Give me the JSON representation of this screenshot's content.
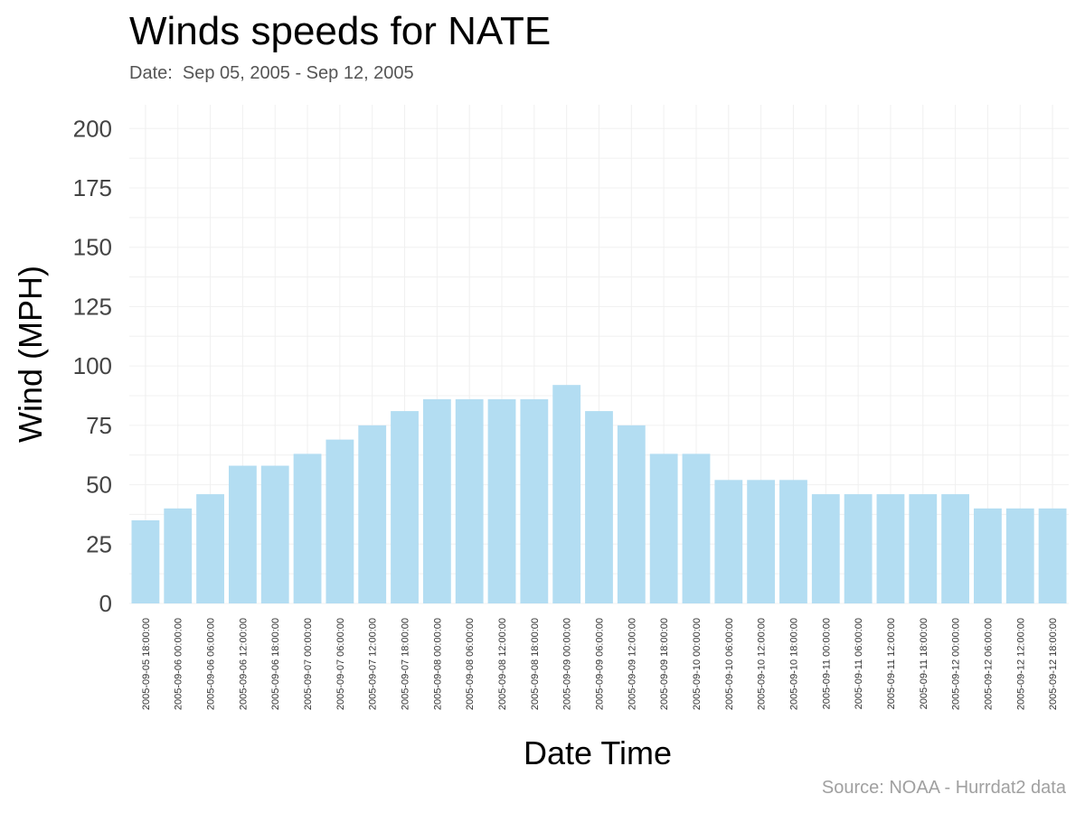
{
  "chart_data": {
    "type": "bar",
    "title": "Winds speeds for NATE",
    "subtitle": "Date:  Sep 05, 2005 - Sep 12, 2005",
    "xlabel": "Date Time",
    "ylabel": "Wind (MPH)",
    "source": "Source: NOAA - Hurrdat2 data",
    "ylim": [
      0,
      210
    ],
    "yticks": [
      0,
      25,
      50,
      75,
      100,
      125,
      150,
      175,
      200
    ],
    "grid": true,
    "bar_color": "#b3ddf2",
    "categories": [
      "2005-09-05 18:00:00",
      "2005-09-06 00:00:00",
      "2005-09-06 06:00:00",
      "2005-09-06 12:00:00",
      "2005-09-06 18:00:00",
      "2005-09-07 00:00:00",
      "2005-09-07 06:00:00",
      "2005-09-07 12:00:00",
      "2005-09-07 18:00:00",
      "2005-09-08 00:00:00",
      "2005-09-08 06:00:00",
      "2005-09-08 12:00:00",
      "2005-09-08 18:00:00",
      "2005-09-09 00:00:00",
      "2005-09-09 06:00:00",
      "2005-09-09 12:00:00",
      "2005-09-09 18:00:00",
      "2005-09-10 00:00:00",
      "2005-09-10 06:00:00",
      "2005-09-10 12:00:00",
      "2005-09-10 18:00:00",
      "2005-09-11 00:00:00",
      "2005-09-11 06:00:00",
      "2005-09-11 12:00:00",
      "2005-09-11 18:00:00",
      "2005-09-12 00:00:00",
      "2005-09-12 06:00:00",
      "2005-09-12 12:00:00",
      "2005-09-12 18:00:00"
    ],
    "values": [
      35,
      40,
      46,
      58,
      58,
      63,
      69,
      75,
      81,
      86,
      86,
      86,
      86,
      92,
      81,
      75,
      63,
      63,
      52,
      52,
      52,
      46,
      46,
      46,
      46,
      46,
      40,
      40,
      40
    ]
  }
}
